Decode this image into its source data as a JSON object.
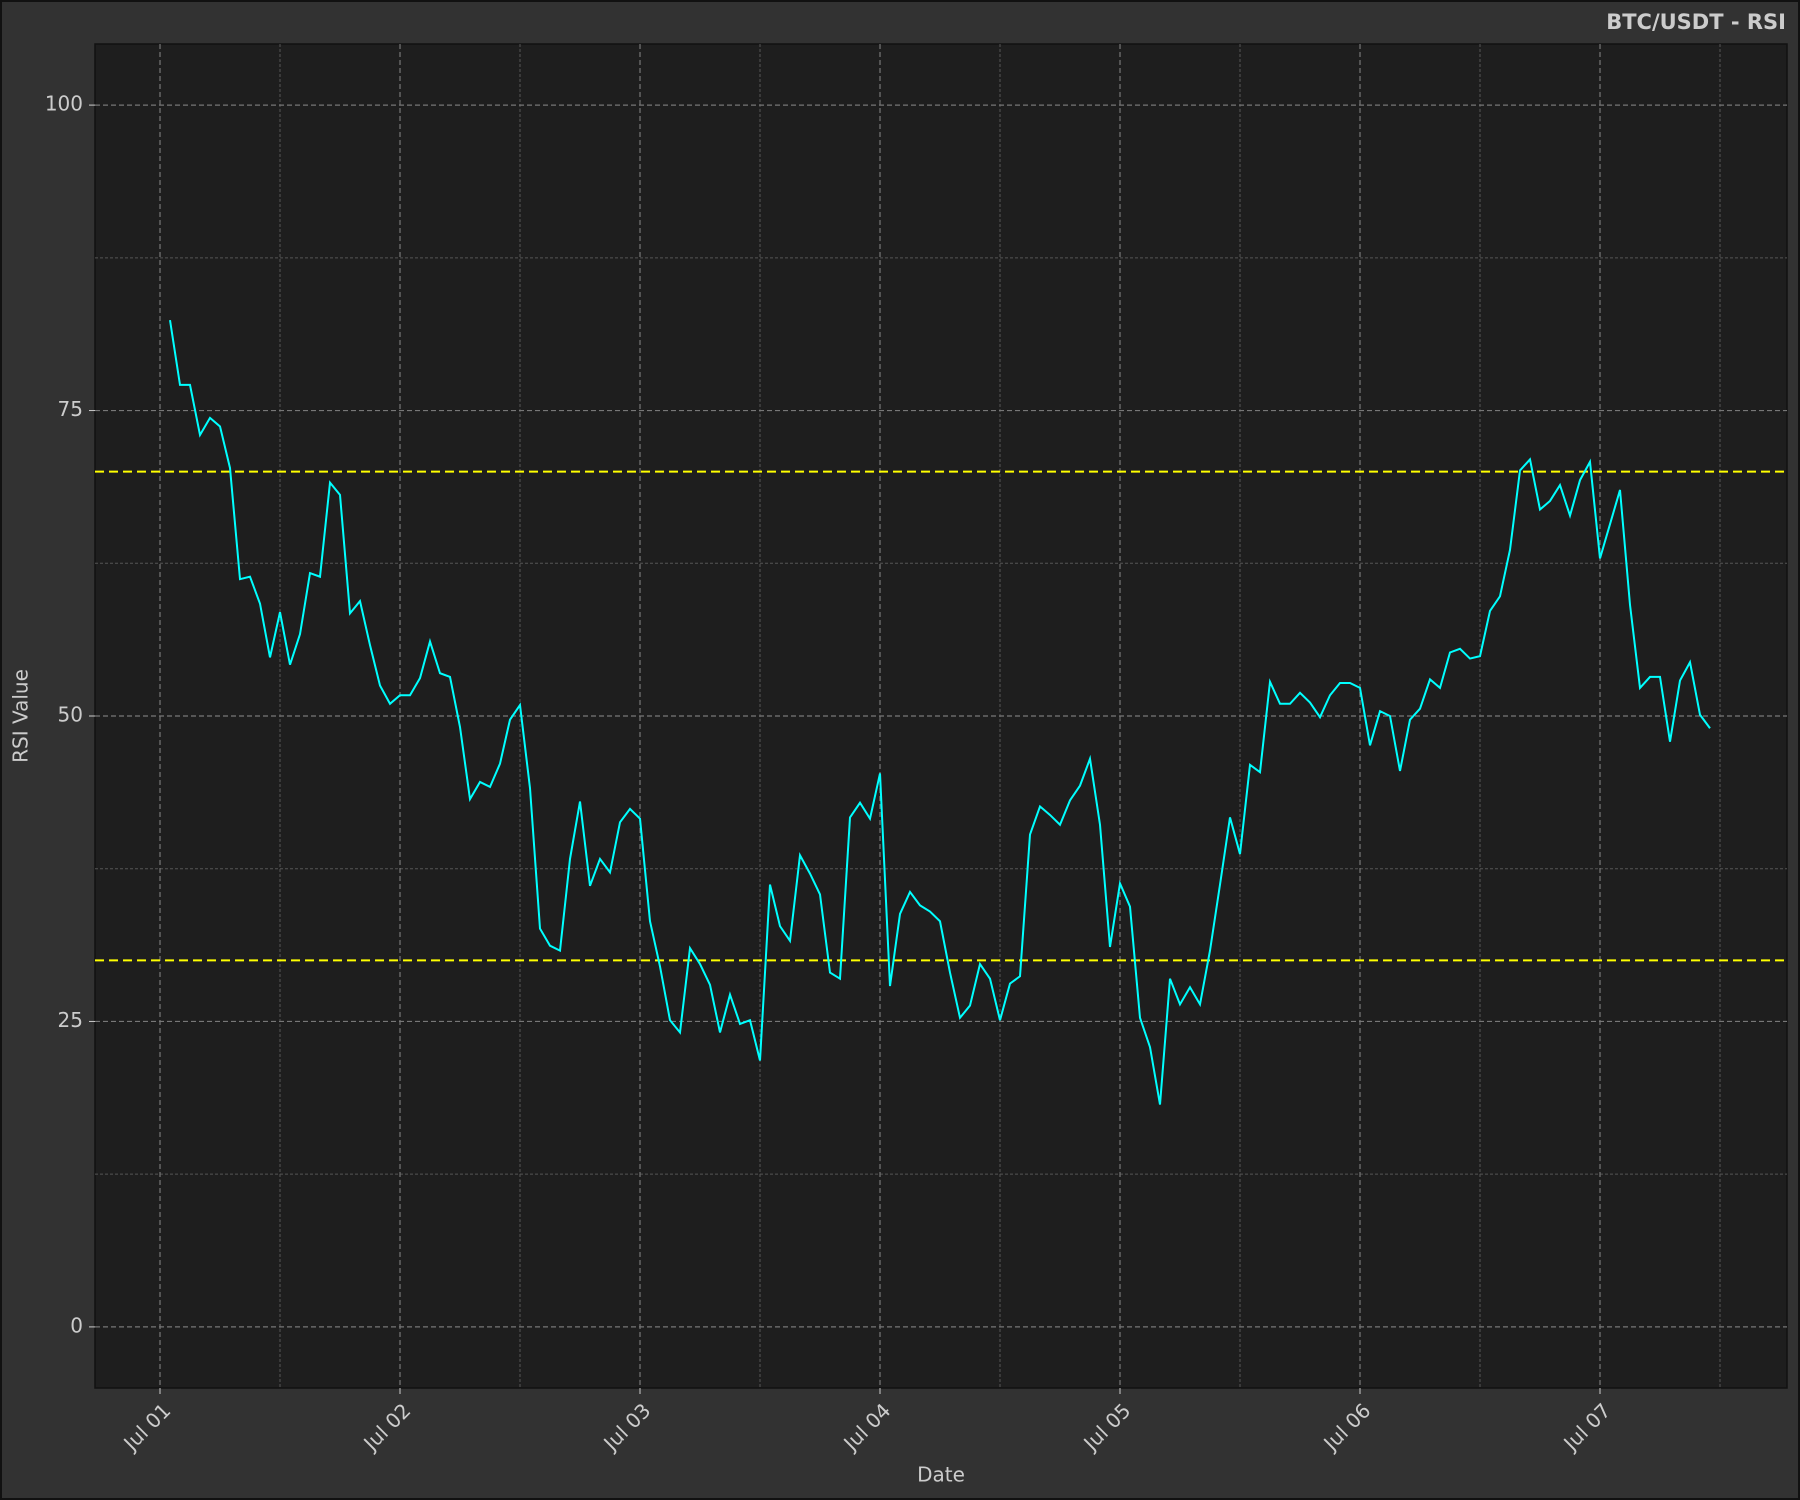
{
  "chart_data": {
    "type": "line",
    "title": "BTC/USDT - RSI",
    "x_label": "Date",
    "y_label": "RSI Value",
    "x": [
      1,
      2,
      3,
      4,
      5,
      6,
      7,
      8,
      9,
      10,
      11,
      12,
      13,
      14,
      15,
      16,
      17,
      18,
      19,
      20,
      21,
      22,
      23,
      24,
      25,
      26,
      27,
      28,
      29,
      30,
      31,
      32,
      33,
      34,
      35,
      36,
      37,
      38,
      39,
      40,
      41,
      42,
      43,
      44,
      45,
      46,
      47,
      48,
      49,
      50,
      51,
      52,
      53,
      54,
      55,
      56,
      57,
      58,
      59,
      60,
      61,
      62,
      63,
      64,
      65,
      66,
      67,
      68,
      69,
      70,
      71,
      72,
      73,
      74,
      75,
      76,
      77,
      78,
      79,
      80,
      81,
      82,
      83,
      84,
      85,
      86,
      87,
      88,
      89,
      90,
      91,
      92,
      93,
      94,
      95,
      96,
      97,
      98,
      99,
      100,
      101,
      102,
      103,
      104,
      105,
      106,
      107,
      108,
      109,
      110,
      111,
      112,
      113,
      114,
      115,
      116,
      117,
      118,
      119,
      120,
      121,
      122,
      123,
      124,
      125,
      126,
      127,
      128,
      129,
      130,
      131,
      132,
      133,
      134,
      135,
      136,
      137,
      138,
      139,
      140,
      141,
      142,
      143,
      144,
      145,
      146,
      147,
      148,
      149,
      150,
      151,
      152,
      153,
      154,
      155
    ],
    "series": [
      {
        "name": "RSI",
        "color": "#00ffff",
        "values": [
          82.4,
          77.1,
          77.1,
          73.0,
          74.4,
          73.7,
          70.3,
          61.2,
          61.4,
          59.2,
          54.8,
          58.5,
          54.2,
          56.7,
          61.7,
          61.4,
          69.1,
          68.1,
          58.4,
          59.4,
          55.8,
          52.5,
          51.0,
          51.7,
          51.7,
          53.1,
          56.1,
          53.5,
          53.2,
          49.1,
          43.2,
          44.6,
          44.2,
          46.1,
          49.7,
          50.9,
          44.1,
          32.6,
          31.2,
          30.8,
          38.3,
          43.0,
          36.1,
          38.3,
          37.2,
          41.3,
          42.4,
          41.6,
          33.2,
          29.5,
          25.1,
          24.1,
          31.0,
          29.7,
          28.0,
          24.1,
          27.2,
          24.8,
          25.1,
          21.8,
          36.2,
          32.8,
          31.6,
          38.6,
          37.1,
          35.4,
          29.0,
          28.5,
          41.7,
          42.9,
          41.6,
          45.3,
          27.9,
          33.8,
          35.6,
          34.5,
          34.0,
          33.2,
          29.0,
          25.3,
          26.3,
          29.7,
          28.5,
          25.1,
          28.1,
          28.7,
          40.3,
          42.6,
          41.9,
          41.1,
          43.1,
          44.3,
          46.5,
          41.1,
          31.1,
          36.3,
          34.4,
          25.3,
          22.9,
          18.2,
          28.5,
          26.4,
          27.8,
          26.4,
          30.8,
          36.2,
          41.7,
          38.7,
          46.0,
          45.4,
          52.8,
          51.0,
          51.0,
          51.9,
          51.1,
          49.9,
          51.7,
          52.7,
          52.7,
          52.3,
          47.6,
          50.4,
          50.0,
          45.5,
          49.7,
          50.6,
          53.0,
          52.3,
          55.2,
          55.5,
          54.7,
          54.9,
          58.6,
          59.8,
          63.6,
          70.1,
          71.0,
          66.9,
          67.6,
          68.9,
          66.4,
          69.3,
          70.8,
          62.9,
          65.7,
          68.5,
          59.1,
          52.3,
          53.2,
          53.2,
          47.9,
          52.9,
          54.4,
          50.1,
          49.0
        ]
      }
    ],
    "hlines": [
      {
        "value": 70,
        "color": "#ffff00"
      },
      {
        "value": 30,
        "color": "#ffff00"
      }
    ],
    "xlim": [
      -6.5,
      162.7
    ],
    "ylim": [
      -5,
      105
    ],
    "xticks": [
      {
        "value": 0,
        "label": "Jul 01"
      },
      {
        "value": 24,
        "label": "Jul 02"
      },
      {
        "value": 48,
        "label": "Jul 03"
      },
      {
        "value": 72,
        "label": "Jul 04"
      },
      {
        "value": 96,
        "label": "Jul 05"
      },
      {
        "value": 120,
        "label": "Jul 06"
      },
      {
        "value": 144,
        "label": "Jul 07"
      }
    ],
    "yticks": [
      0,
      25,
      50,
      75,
      100
    ],
    "minor_xticks": [
      12,
      36,
      60,
      84,
      108,
      132,
      156
    ],
    "minor_yticks": [
      12.5,
      37.5,
      62.5,
      87.5
    ],
    "grid": true
  }
}
